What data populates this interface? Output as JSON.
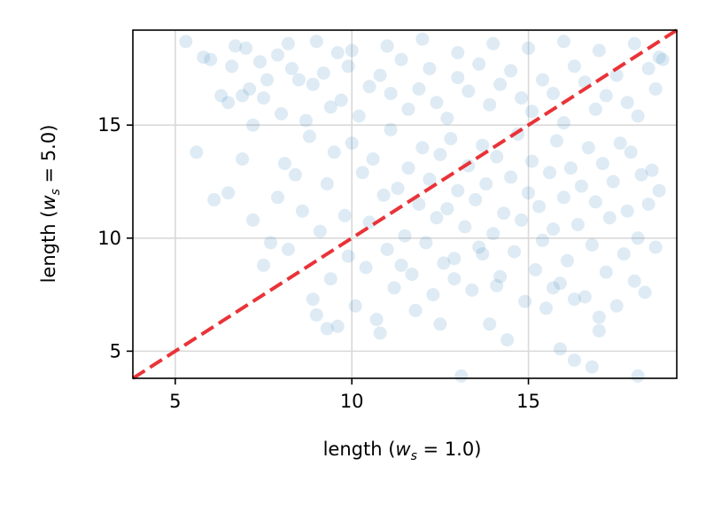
{
  "chart_data": {
    "type": "scatter",
    "title": "",
    "xlabel": {
      "prefix": "length (",
      "var": "w",
      "sub": "s",
      "suffix": " = 1.0)"
    },
    "ylabel": {
      "prefix": "length (",
      "var": "w",
      "sub": "s",
      "suffix": " = 5.0)"
    },
    "xlim": [
      3.8,
      19.2
    ],
    "ylim": [
      3.8,
      19.2
    ],
    "xticks": [
      5,
      10,
      15
    ],
    "yticks": [
      5,
      10,
      15
    ],
    "xtick_labels": [
      "5",
      "10",
      "15"
    ],
    "ytick_labels": [
      "5",
      "10",
      "15"
    ],
    "grid": true,
    "legend": "none",
    "point_color": "#1f77b4",
    "point_alpha": 0.15,
    "reference_line": {
      "type": "identity",
      "color": "#e8282d",
      "style": "dashed"
    },
    "series": [
      {
        "points": [
          [
            5.3,
            18.7
          ],
          [
            5.8,
            18.0
          ],
          [
            6.0,
            17.9
          ],
          [
            6.3,
            16.3
          ],
          [
            6.5,
            16.0
          ],
          [
            6.6,
            17.6
          ],
          [
            6.9,
            16.3
          ],
          [
            7.1,
            16.6
          ],
          [
            7.2,
            15.0
          ],
          [
            7.5,
            16.2
          ],
          [
            7.6,
            17.0
          ],
          [
            7.9,
            18.1
          ],
          [
            8.0,
            15.5
          ],
          [
            8.3,
            17.5
          ],
          [
            8.5,
            17.0
          ],
          [
            8.7,
            15.2
          ],
          [
            8.9,
            16.8
          ],
          [
            9.2,
            17.3
          ],
          [
            9.4,
            15.8
          ],
          [
            9.7,
            16.1
          ],
          [
            9.9,
            17.6
          ],
          [
            10.2,
            15.4
          ],
          [
            10.5,
            16.7
          ],
          [
            10.8,
            17.2
          ],
          [
            11.1,
            16.4
          ],
          [
            11.4,
            17.9
          ],
          [
            11.6,
            15.7
          ],
          [
            11.9,
            16.6
          ],
          [
            12.2,
            17.5
          ],
          [
            12.4,
            16.0
          ],
          [
            12.7,
            15.3
          ],
          [
            13.0,
            17.1
          ],
          [
            13.3,
            16.5
          ],
          [
            13.6,
            17.7
          ],
          [
            13.9,
            15.9
          ],
          [
            14.2,
            16.8
          ],
          [
            14.5,
            17.4
          ],
          [
            14.8,
            16.2
          ],
          [
            15.1,
            15.6
          ],
          [
            15.4,
            17.0
          ],
          [
            15.7,
            16.4
          ],
          [
            16.0,
            15.1
          ],
          [
            16.3,
            17.6
          ],
          [
            16.6,
            16.9
          ],
          [
            16.9,
            15.7
          ],
          [
            17.2,
            16.3
          ],
          [
            17.5,
            17.2
          ],
          [
            17.8,
            16.0
          ],
          [
            18.1,
            15.4
          ],
          [
            18.4,
            17.5
          ],
          [
            18.6,
            16.6
          ],
          [
            18.8,
            17.9
          ],
          [
            7.0,
            18.4
          ],
          [
            8.2,
            18.6
          ],
          [
            9.0,
            18.7
          ],
          [
            10.0,
            18.3
          ],
          [
            11.0,
            18.5
          ],
          [
            12.0,
            18.8
          ],
          [
            13.0,
            18.2
          ],
          [
            14.0,
            18.6
          ],
          [
            15.0,
            18.4
          ],
          [
            16.0,
            18.7
          ],
          [
            17.0,
            18.3
          ],
          [
            18.0,
            18.6
          ],
          [
            18.7,
            18.0
          ],
          [
            6.7,
            18.5
          ],
          [
            7.4,
            17.8
          ],
          [
            9.6,
            18.2
          ],
          [
            5.6,
            13.8
          ],
          [
            6.1,
            11.7
          ],
          [
            6.5,
            12.0
          ],
          [
            6.9,
            13.5
          ],
          [
            7.2,
            10.8
          ],
          [
            7.5,
            8.8
          ],
          [
            7.7,
            9.8
          ],
          [
            7.9,
            11.8
          ],
          [
            8.1,
            13.3
          ],
          [
            8.2,
            9.5
          ],
          [
            8.4,
            12.8
          ],
          [
            8.6,
            11.2
          ],
          [
            8.8,
            14.5
          ],
          [
            8.9,
            7.3
          ],
          [
            9.0,
            6.6
          ],
          [
            9.1,
            10.3
          ],
          [
            9.3,
            12.4
          ],
          [
            9.4,
            8.2
          ],
          [
            9.5,
            13.8
          ],
          [
            9.6,
            6.1
          ],
          [
            9.8,
            11.0
          ],
          [
            9.9,
            9.2
          ],
          [
            10.0,
            14.2
          ],
          [
            10.1,
            7.0
          ],
          [
            10.3,
            12.9
          ],
          [
            10.4,
            8.7
          ],
          [
            10.5,
            10.7
          ],
          [
            10.6,
            13.5
          ],
          [
            10.7,
            6.4
          ],
          [
            10.9,
            11.9
          ],
          [
            11.0,
            9.5
          ],
          [
            11.1,
            14.8
          ],
          [
            11.2,
            7.8
          ],
          [
            11.3,
            12.2
          ],
          [
            11.5,
            10.1
          ],
          [
            11.6,
            13.1
          ],
          [
            11.7,
            8.4
          ],
          [
            11.8,
            6.8
          ],
          [
            11.9,
            11.5
          ],
          [
            12.0,
            14.0
          ],
          [
            12.1,
            9.8
          ],
          [
            12.2,
            12.6
          ],
          [
            12.3,
            7.5
          ],
          [
            12.4,
            10.9
          ],
          [
            12.5,
            13.7
          ],
          [
            12.6,
            8.9
          ],
          [
            12.7,
            11.3
          ],
          [
            12.8,
            14.4
          ],
          [
            12.9,
            9.1
          ],
          [
            13.0,
            12.1
          ],
          [
            13.1,
            3.9
          ],
          [
            13.2,
            10.5
          ],
          [
            13.3,
            13.2
          ],
          [
            13.4,
            7.7
          ],
          [
            13.5,
            11.7
          ],
          [
            13.6,
            9.6
          ],
          [
            13.7,
            14.1
          ],
          [
            13.8,
            12.4
          ],
          [
            13.9,
            6.2
          ],
          [
            14.0,
            10.2
          ],
          [
            14.1,
            13.6
          ],
          [
            14.2,
            8.3
          ],
          [
            14.3,
            11.1
          ],
          [
            14.4,
            5.5
          ],
          [
            14.5,
            12.7
          ],
          [
            14.6,
            9.4
          ],
          [
            14.7,
            14.6
          ],
          [
            14.8,
            10.8
          ],
          [
            14.9,
            7.2
          ],
          [
            15.0,
            12.0
          ],
          [
            15.1,
            13.4
          ],
          [
            15.2,
            8.6
          ],
          [
            15.3,
            11.4
          ],
          [
            15.4,
            9.9
          ],
          [
            15.5,
            6.9
          ],
          [
            15.6,
            12.9
          ],
          [
            15.7,
            10.4
          ],
          [
            15.8,
            14.3
          ],
          [
            15.9,
            8.0
          ],
          [
            16.0,
            11.8
          ],
          [
            16.1,
            9.0
          ],
          [
            16.2,
            13.1
          ],
          [
            16.3,
            4.6
          ],
          [
            16.4,
            10.6
          ],
          [
            16.5,
            12.3
          ],
          [
            16.6,
            7.4
          ],
          [
            16.7,
            14.0
          ],
          [
            16.8,
            9.7
          ],
          [
            16.9,
            11.6
          ],
          [
            17.0,
            5.9
          ],
          [
            17.1,
            13.3
          ],
          [
            17.2,
            8.5
          ],
          [
            17.3,
            10.9
          ],
          [
            17.4,
            12.5
          ],
          [
            17.5,
            7.0
          ],
          [
            17.6,
            14.2
          ],
          [
            17.7,
            9.3
          ],
          [
            17.8,
            11.2
          ],
          [
            17.9,
            13.8
          ],
          [
            18.0,
            8.1
          ],
          [
            18.1,
            10.0
          ],
          [
            18.2,
            12.8
          ],
          [
            18.3,
            7.6
          ],
          [
            18.4,
            11.5
          ],
          [
            18.5,
            13.0
          ],
          [
            18.6,
            9.6
          ],
          [
            18.7,
            12.1
          ],
          [
            15.7,
            7.8
          ],
          [
            16.3,
            7.3
          ],
          [
            17.0,
            6.5
          ],
          [
            16.8,
            4.3
          ],
          [
            18.1,
            3.9
          ],
          [
            10.8,
            5.8
          ],
          [
            12.5,
            6.2
          ],
          [
            9.3,
            6.0
          ],
          [
            15.9,
            5.1
          ],
          [
            11.4,
            8.8
          ],
          [
            12.9,
            8.2
          ],
          [
            14.1,
            7.9
          ],
          [
            13.7,
            9.3
          ]
        ]
      }
    ]
  }
}
